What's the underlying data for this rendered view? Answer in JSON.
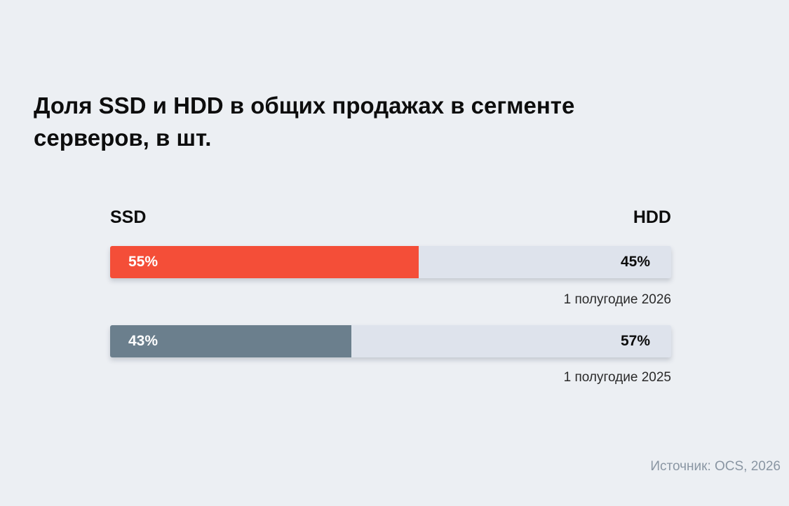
{
  "chart_data": {
    "type": "bar",
    "orientation": "horizontal-stacked",
    "title": "Доля SSD и HDD в общих продажах в сегменте серверов, в шт.",
    "legend": {
      "left": "SSD",
      "right": "HDD",
      "placement": "top"
    },
    "categories": [
      "1 полугодие 2026",
      "1 полугодие 2025"
    ],
    "series": [
      {
        "name": "SSD",
        "values": [
          55,
          43
        ]
      },
      {
        "name": "HDD",
        "values": [
          45,
          57
        ]
      }
    ],
    "bars": [
      {
        "period": "1 полугодие 2026",
        "ssd_value": 55,
        "ssd_label": "55%",
        "hdd_value": 45,
        "hdd_label": "45%",
        "ssd_color": "#f44e38"
      },
      {
        "period": "1 полугодие 2025",
        "ssd_value": 43,
        "ssd_label": "43%",
        "hdd_value": 57,
        "hdd_label": "57%",
        "ssd_color": "#6b7f8d"
      }
    ],
    "unit": "%",
    "xlim": [
      0,
      100
    ],
    "colors": {
      "track": "#dee3ec",
      "background": "#eceff3"
    }
  },
  "source": "Источник: OCS, 2026"
}
